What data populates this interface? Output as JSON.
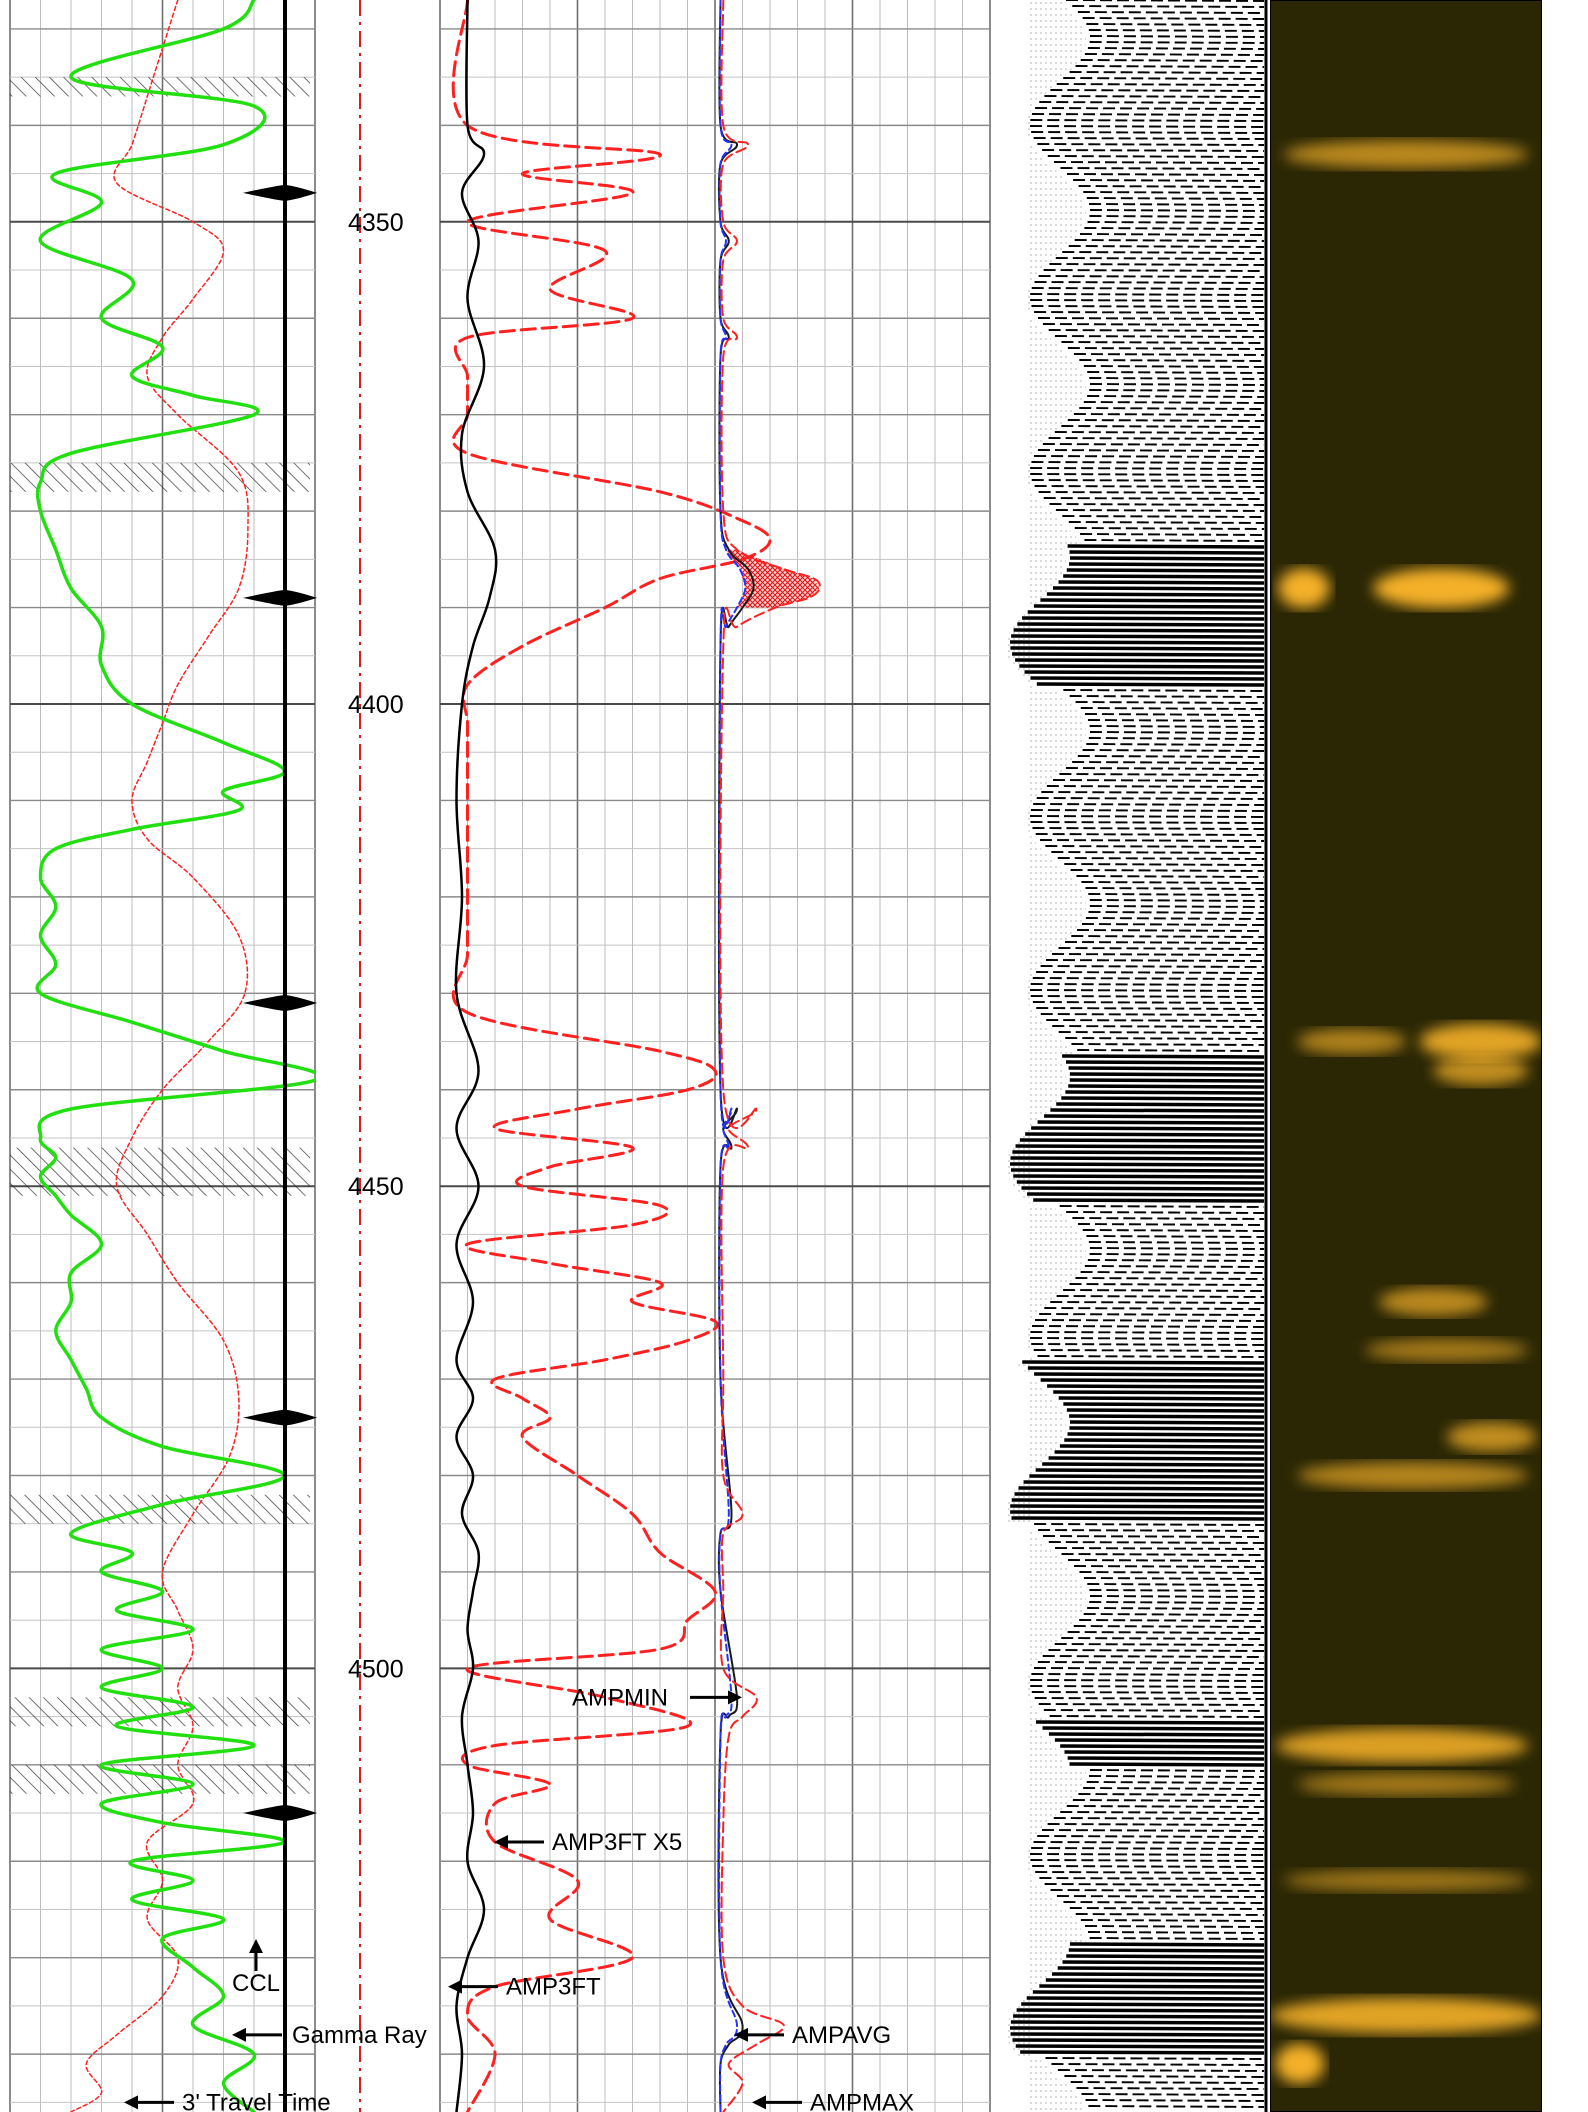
{
  "chart_data": {
    "type": "line",
    "title": "",
    "depth_axis": {
      "range": [
        4327,
        4546
      ],
      "major_ticks": [
        4350,
        4400,
        4450,
        4500
      ],
      "tick_labels": [
        "4350",
        "4400",
        "4450",
        "4500"
      ]
    },
    "annotations": [
      {
        "id": "ccl",
        "text": "CCL",
        "depth": 4532
      },
      {
        "id": "gamma",
        "text": "Gamma Ray",
        "depth": 4538
      },
      {
        "id": "travel",
        "text": "3' Travel Time",
        "depth": 4545
      },
      {
        "id": "amp3ft_x5",
        "text": "AMP3FT X5",
        "depth": 4518
      },
      {
        "id": "amp3ft",
        "text": "AMP3FT",
        "depth": 4533
      },
      {
        "id": "ampmin",
        "text": "AMPMIN",
        "depth": 4503
      },
      {
        "id": "ampavg",
        "text": "AMPAVG",
        "depth": 4538
      },
      {
        "id": "ampmax",
        "text": "AMPMAX",
        "depth": 4545
      }
    ],
    "series": [
      {
        "key": "gamma",
        "color": "#22e010",
        "track": "left",
        "depth": [
          4327,
          4330,
          4335,
          4338,
          4342,
          4345,
          4348,
          4352,
          4356,
          4360,
          4363,
          4366,
          4368,
          4370,
          4374,
          4377,
          4380,
          4384,
          4388,
          4392,
          4396,
          4400,
          4404,
          4407,
          4409,
          4411,
          4413,
          4415,
          4418,
          4421,
          4424,
          4427,
          4430,
          4433,
          4436,
          4439,
          4442,
          4445,
          4447,
          4449,
          4451,
          4453,
          4456,
          4459,
          4462,
          4465,
          4468,
          4471,
          4474,
          4477,
          4480,
          4483,
          4486,
          4488,
          4490,
          4492,
          4494,
          4496,
          4498,
          4500,
          4502,
          4504,
          4506,
          4508,
          4510,
          4512,
          4514,
          4516,
          4518,
          4520,
          4522,
          4524,
          4526,
          4528,
          4531,
          4534,
          4537,
          4540,
          4543,
          4546
        ],
        "value": [
          0.8,
          0.7,
          0.2,
          0.8,
          0.7,
          0.15,
          0.3,
          0.1,
          0.4,
          0.3,
          0.5,
          0.4,
          0.6,
          0.8,
          0.2,
          0.1,
          0.1,
          0.15,
          0.2,
          0.3,
          0.3,
          0.4,
          0.7,
          0.9,
          0.7,
          0.75,
          0.4,
          0.15,
          0.1,
          0.15,
          0.1,
          0.15,
          0.1,
          0.4,
          0.7,
          1.0,
          0.2,
          0.1,
          0.15,
          0.1,
          0.15,
          0.2,
          0.3,
          0.2,
          0.2,
          0.15,
          0.2,
          0.25,
          0.3,
          0.5,
          0.9,
          0.5,
          0.2,
          0.4,
          0.3,
          0.5,
          0.35,
          0.6,
          0.3,
          0.5,
          0.3,
          0.6,
          0.35,
          0.8,
          0.3,
          0.6,
          0.3,
          0.5,
          0.9,
          0.4,
          0.6,
          0.4,
          0.7,
          0.5,
          0.6,
          0.7,
          0.6,
          0.8,
          0.7,
          0.8
        ]
      },
      {
        "key": "travel",
        "color": "#ff2020",
        "track": "left",
        "depth": [
          4327,
          4332,
          4337,
          4342,
          4346,
          4350,
          4353,
          4358,
          4362,
          4366,
          4370,
          4376,
          4382,
          4388,
          4393,
          4398,
          4402,
          4406,
          4410,
          4414,
          4418,
          4424,
          4430,
          4435,
          4440,
          4445,
          4450,
          4455,
          4460,
          4466,
          4472,
          4478,
          4484,
          4490,
          4494,
          4498,
          4502,
          4506,
          4510,
          4514,
          4518,
          4522,
          4526,
          4530,
          4534,
          4538,
          4541,
          4544,
          4546
        ],
        "value": [
          0.55,
          0.5,
          0.45,
          0.4,
          0.35,
          0.6,
          0.7,
          0.6,
          0.5,
          0.45,
          0.55,
          0.75,
          0.78,
          0.75,
          0.65,
          0.55,
          0.5,
          0.45,
          0.4,
          0.45,
          0.6,
          0.75,
          0.77,
          0.65,
          0.5,
          0.4,
          0.35,
          0.45,
          0.55,
          0.7,
          0.75,
          0.72,
          0.6,
          0.5,
          0.55,
          0.6,
          0.55,
          0.6,
          0.55,
          0.6,
          0.45,
          0.5,
          0.45,
          0.55,
          0.5,
          0.35,
          0.25,
          0.3,
          0.2
        ]
      },
      {
        "key": "ccl",
        "color": "#000000",
        "track": "left",
        "collar_depths": [
          4347,
          4389,
          4431,
          4474,
          4515
        ]
      },
      {
        "key": "amp3ft_x5",
        "color": "#ff2020",
        "track": "middle",
        "depth": [
          4327,
          4340,
          4343,
          4345,
          4347,
          4350,
          4353,
          4357,
          4360,
          4362,
          4366,
          4370,
          4374,
          4378,
          4381,
          4383,
          4385,
          4387,
          4390,
          4394,
          4398,
          4402,
          4406,
          4410,
          4414,
          4420,
          4426,
          4432,
          4436,
          4438,
          4440,
          4442,
          4444,
          4446,
          4448,
          4450,
          4452,
          4454,
          4456,
          4458,
          4460,
          4462,
          4464,
          4466,
          4468,
          4470,
          4472,
          4474,
          4476,
          4480,
          4484,
          4488,
          4492,
          4495,
          4498,
          4500,
          4503,
          4506,
          4508,
          4510,
          4512,
          4514,
          4518,
          4522,
          4526,
          4530,
          4533,
          4536,
          4540,
          4546
        ],
        "value": [
          0.05,
          0.05,
          0.4,
          0.15,
          0.35,
          0.05,
          0.3,
          0.2,
          0.35,
          0.05,
          0.05,
          0.05,
          0.05,
          0.4,
          0.55,
          0.6,
          0.55,
          0.4,
          0.3,
          0.15,
          0.05,
          0.05,
          0.05,
          0.05,
          0.05,
          0.05,
          0.05,
          0.05,
          0.4,
          0.5,
          0.45,
          0.25,
          0.1,
          0.35,
          0.2,
          0.15,
          0.4,
          0.35,
          0.05,
          0.2,
          0.4,
          0.35,
          0.5,
          0.45,
          0.3,
          0.1,
          0.15,
          0.2,
          0.15,
          0.25,
          0.35,
          0.4,
          0.5,
          0.45,
          0.4,
          0.05,
          0.3,
          0.45,
          0.1,
          0.05,
          0.2,
          0.1,
          0.1,
          0.25,
          0.2,
          0.35,
          0.1,
          0.05,
          0.1,
          0.05
        ]
      },
      {
        "key": "amp3ft",
        "color": "#000000",
        "track": "middle",
        "depth": [
          4327,
          4340,
          4343,
          4347,
          4352,
          4358,
          4365,
          4372,
          4378,
          4384,
          4389,
          4394,
          4400,
          4410,
          4420,
          4430,
          4438,
          4444,
          4450,
          4456,
          4462,
          4468,
          4472,
          4476,
          4480,
          4484,
          4488,
          4492,
          4496,
          4500,
          4505,
          4510,
          4515,
          4520,
          4525,
          4530,
          4535,
          4540,
          4546
        ],
        "value": [
          0.05,
          0.05,
          0.08,
          0.04,
          0.07,
          0.05,
          0.08,
          0.04,
          0.05,
          0.1,
          0.09,
          0.06,
          0.04,
          0.03,
          0.04,
          0.03,
          0.07,
          0.03,
          0.07,
          0.03,
          0.06,
          0.03,
          0.06,
          0.03,
          0.06,
          0.04,
          0.07,
          0.06,
          0.05,
          0.06,
          0.04,
          0.05,
          0.06,
          0.05,
          0.08,
          0.05,
          0.03,
          0.04,
          0.03
        ]
      },
      {
        "key": "ampmax",
        "color": "#ff2020",
        "track": "right",
        "depth": [
          4327,
          4340,
          4342,
          4344,
          4350,
          4352,
          4354,
          4360,
          4362,
          4364,
          4380,
          4384,
          4386,
          4387,
          4388,
          4389,
          4390,
          4392,
          4394,
          4440,
          4442,
          4444,
          4446,
          4448,
          4470,
          4480,
          4484,
          4486,
          4492,
          4500,
          4503,
          4505,
          4507,
          4516,
          4530,
          4535,
          4537,
          4539,
          4541,
          4543,
          4546
        ],
        "value": [
          0.03,
          0.03,
          0.12,
          0.03,
          0.03,
          0.08,
          0.03,
          0.03,
          0.08,
          0.03,
          0.03,
          0.08,
          0.25,
          0.36,
          0.38,
          0.34,
          0.22,
          0.08,
          0.03,
          0.03,
          0.15,
          0.05,
          0.12,
          0.03,
          0.03,
          0.03,
          0.1,
          0.03,
          0.03,
          0.03,
          0.15,
          0.1,
          0.05,
          0.03,
          0.03,
          0.1,
          0.25,
          0.15,
          0.05,
          0.1,
          0.03
        ]
      },
      {
        "key": "ampmin",
        "color": "#1a1a1a",
        "track": "right",
        "depth": [
          4327,
          4340,
          4342,
          4344,
          4350,
          4352,
          4354,
          4360,
          4362,
          4364,
          4380,
          4384,
          4386,
          4388,
          4390,
          4392,
          4394,
          4440,
          4442,
          4444,
          4446,
          4448,
          4470,
          4484,
          4486,
          4492,
          4503,
          4505,
          4507,
          4530,
          4537,
          4539,
          4541,
          4546
        ],
        "value": [
          0.02,
          0.02,
          0.08,
          0.02,
          0.02,
          0.05,
          0.02,
          0.02,
          0.05,
          0.02,
          0.02,
          0.05,
          0.12,
          0.14,
          0.1,
          0.05,
          0.02,
          0.02,
          0.08,
          0.03,
          0.06,
          0.02,
          0.02,
          0.06,
          0.02,
          0.02,
          0.08,
          0.05,
          0.02,
          0.02,
          0.1,
          0.05,
          0.02,
          0.02
        ]
      },
      {
        "key": "ampavg",
        "color": "#2233ff",
        "track": "right",
        "depth": [
          4327,
          4340,
          4342,
          4344,
          4350,
          4352,
          4354,
          4360,
          4362,
          4364,
          4380,
          4384,
          4386,
          4388,
          4390,
          4392,
          4394,
          4440,
          4442,
          4444,
          4446,
          4448,
          4470,
          4484,
          4486,
          4492,
          4503,
          4505,
          4507,
          4530,
          4537,
          4539,
          4541,
          4546
        ],
        "value": [
          0.02,
          0.02,
          0.06,
          0.02,
          0.02,
          0.04,
          0.02,
          0.02,
          0.04,
          0.02,
          0.02,
          0.04,
          0.09,
          0.11,
          0.08,
          0.04,
          0.02,
          0.02,
          0.06,
          0.03,
          0.05,
          0.02,
          0.02,
          0.05,
          0.02,
          0.02,
          0.06,
          0.04,
          0.02,
          0.02,
          0.08,
          0.04,
          0.02,
          0.02
        ]
      }
    ],
    "shading": {
      "gamma_hatch_depths": [
        [
          4335,
          4337
        ],
        [
          4375,
          4378
        ],
        [
          4446,
          4451
        ],
        [
          4482,
          4485
        ],
        [
          4503,
          4506
        ],
        [
          4510,
          4513
        ]
      ],
      "ampmax_fill_depth": [
        4384,
        4391
      ]
    },
    "vdl": {
      "color_light": "#ffffff",
      "color_dark": "#000000",
      "high_amplitude_depths": [
        [
          4383,
          4398
        ],
        [
          4436,
          4452
        ],
        [
          4468,
          4485
        ],
        [
          4505,
          4510
        ],
        [
          4528,
          4540
        ]
      ]
    },
    "image_log": {
      "background": "#2b2705",
      "highlight": "#ffb82a",
      "bright_spots": [
        {
          "depth": 4343,
          "from": 0.05,
          "to": 0.95,
          "intensity": 0.55
        },
        {
          "depth": 4388,
          "from": 0.03,
          "to": 0.22,
          "intensity": 1.0
        },
        {
          "depth": 4388,
          "from": 0.38,
          "to": 0.88,
          "intensity": 1.0
        },
        {
          "depth": 4435,
          "from": 0.1,
          "to": 0.5,
          "intensity": 0.45
        },
        {
          "depth": 4435,
          "from": 0.55,
          "to": 1.0,
          "intensity": 0.85
        },
        {
          "depth": 4438,
          "from": 0.6,
          "to": 0.95,
          "intensity": 0.6
        },
        {
          "depth": 4462,
          "from": 0.4,
          "to": 0.8,
          "intensity": 0.55
        },
        {
          "depth": 4467,
          "from": 0.35,
          "to": 0.95,
          "intensity": 0.35
        },
        {
          "depth": 4476,
          "from": 0.65,
          "to": 0.98,
          "intensity": 0.6
        },
        {
          "depth": 4480,
          "from": 0.1,
          "to": 0.95,
          "intensity": 0.5
        },
        {
          "depth": 4508,
          "from": 0.02,
          "to": 0.95,
          "intensity": 0.8
        },
        {
          "depth": 4512,
          "from": 0.1,
          "to": 0.9,
          "intensity": 0.35
        },
        {
          "depth": 4522,
          "from": 0.05,
          "to": 0.95,
          "intensity": 0.3
        },
        {
          "depth": 4536,
          "from": 0.0,
          "to": 1.0,
          "intensity": 0.85
        },
        {
          "depth": 4541,
          "from": 0.02,
          "to": 0.2,
          "intensity": 1.0
        }
      ]
    }
  }
}
